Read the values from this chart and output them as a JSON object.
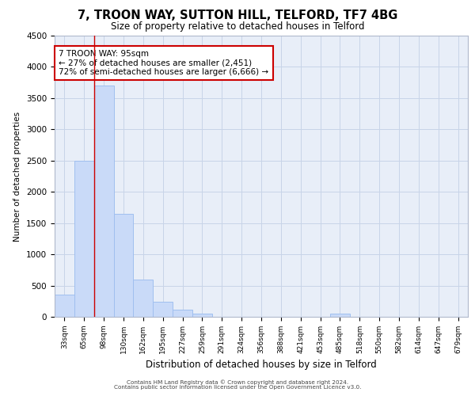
{
  "title": "7, TROON WAY, SUTTON HILL, TELFORD, TF7 4BG",
  "subtitle": "Size of property relative to detached houses in Telford",
  "xlabel": "Distribution of detached houses by size in Telford",
  "ylabel": "Number of detached properties",
  "categories": [
    "33sqm",
    "65sqm",
    "98sqm",
    "130sqm",
    "162sqm",
    "195sqm",
    "227sqm",
    "259sqm",
    "291sqm",
    "324sqm",
    "356sqm",
    "388sqm",
    "421sqm",
    "453sqm",
    "485sqm",
    "518sqm",
    "550sqm",
    "582sqm",
    "614sqm",
    "647sqm",
    "679sqm"
  ],
  "values": [
    350,
    2500,
    3700,
    1650,
    590,
    240,
    110,
    55,
    0,
    0,
    0,
    0,
    0,
    0,
    55,
    0,
    0,
    0,
    0,
    0,
    0
  ],
  "bar_color": "#c9daf8",
  "bar_edge_color": "#a0bfef",
  "grid_color": "#c8d4e8",
  "bg_color": "#e8eef8",
  "annotation_text": "7 TROON WAY: 95sqm\n← 27% of detached houses are smaller (2,451)\n72% of semi-detached houses are larger (6,666) →",
  "annotation_box_color": "#ffffff",
  "annotation_border_color": "#cc0000",
  "red_line_x": 1.5,
  "ylim": [
    0,
    4500
  ],
  "yticks": [
    0,
    500,
    1000,
    1500,
    2000,
    2500,
    3000,
    3500,
    4000,
    4500
  ],
  "footer_line1": "Contains HM Land Registry data © Crown copyright and database right 2024.",
  "footer_line2": "Contains public sector information licensed under the Open Government Licence v3.0."
}
